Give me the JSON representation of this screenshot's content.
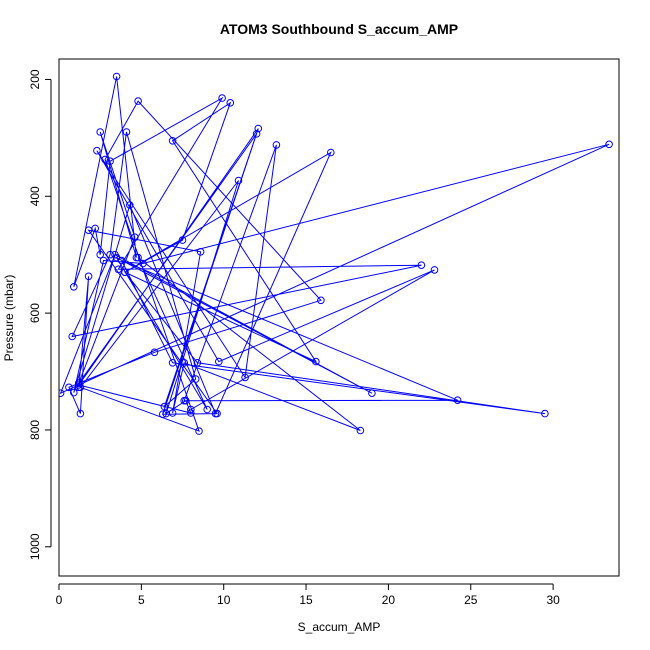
{
  "chart_data": {
    "type": "line",
    "title": "ATOM3 Southbound S_accum_AMP",
    "xlabel": "S_accum_AMP",
    "ylabel": "Pressure (mbar)",
    "xlim": [
      0,
      34
    ],
    "ylim": [
      1050,
      165
    ],
    "y_inverted": true,
    "grid": false,
    "x_ticks": [
      0,
      5,
      10,
      15,
      20,
      25,
      30
    ],
    "y_ticks": [
      200,
      400,
      600,
      800,
      1000
    ],
    "series": [
      {
        "color": "#0000ff",
        "markers": "open-circle",
        "x": [
          1.2,
          1.8,
          1.3,
          0.6,
          1.2,
          4.6,
          2.5,
          4.7,
          3.5,
          0.9,
          2.2,
          2.5,
          3.1,
          9.9,
          3.6,
          22.0,
          0.8,
          3.1,
          4.1,
          8.3,
          6.4,
          12.1,
          1.2,
          8.0,
          7.7,
          6.5,
          10.9,
          1.3,
          8.5,
          2.8,
          4.8,
          15.9,
          5.8,
          1.2,
          12.0,
          6.3,
          9.6,
          1.8,
          8.6,
          6.9,
          7.6,
          18.3,
          4.8,
          9.0,
          3.5,
          19.0,
          3.4,
          0.1,
          33.4,
          5.1,
          2.7,
          0.9,
          4.3,
          9.5,
          16.5,
          4.0,
          7.5,
          10.4,
          6.9,
          15.6,
          4.0,
          8.4,
          29.5,
          6.9,
          3.8,
          24.2,
          7.6,
          13.2,
          11.3,
          2.3,
          9.7,
          22.8,
          8.0
        ],
        "y": [
          727,
          537,
          772,
          727,
          720,
          470,
          290,
          505,
          195,
          555,
          455,
          500,
          340,
          232,
          525,
          518,
          640,
          500,
          290,
          713,
          760,
          284,
          723,
          771,
          750,
          772,
          373,
          727,
          802,
          337,
          237,
          578,
          667,
          720,
          293,
          773,
          772,
          458,
          495,
          771,
          685,
          801,
          505,
          765,
          505,
          737,
          500,
          737,
          311,
          515,
          510,
          736,
          415,
          772,
          325,
          530,
          475,
          240,
          305,
          683,
          530,
          685,
          772,
          685,
          510,
          749,
          750,
          312,
          710,
          322,
          683,
          526,
          765
        ]
      }
    ]
  }
}
